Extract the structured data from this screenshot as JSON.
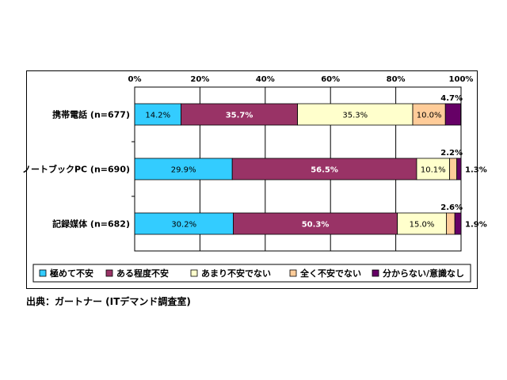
{
  "chart_data": {
    "type": "bar",
    "stacked": true,
    "orientation": "horizontal",
    "percent_axis_ticks": [
      "0%",
      "20%",
      "40%",
      "60%",
      "80%",
      "100%"
    ],
    "categories": [
      "携帯電話 (n=677)",
      "ノートブックPC (n=690)",
      "記録媒体 (n=682)"
    ],
    "series": [
      {
        "name": "極めて不安",
        "values": [
          14.2,
          29.9,
          30.2
        ],
        "labels": [
          "14.2%",
          "29.9%",
          "30.2%"
        ],
        "color": "#33ccff"
      },
      {
        "name": "ある程度不安",
        "values": [
          35.7,
          56.5,
          50.3
        ],
        "labels": [
          "35.7%",
          "56.5%",
          "50.3%"
        ],
        "color": "#993366"
      },
      {
        "name": "あまり不安でない",
        "values": [
          35.3,
          10.1,
          15.0
        ],
        "labels": [
          "35.3%",
          "10.1%",
          "15.0%"
        ],
        "color": "#ffffcc"
      },
      {
        "name": "全く不安でない",
        "values": [
          10.0,
          2.2,
          2.6
        ],
        "labels": [
          "10.0%",
          "2.2%",
          "2.6%"
        ],
        "color": "#ffcc99"
      },
      {
        "name": "分からない/意識なし",
        "values": [
          4.7,
          1.3,
          1.9
        ],
        "labels": [
          "4.7%",
          "1.3%",
          "1.9%"
        ],
        "color": "#660066"
      }
    ],
    "xlim": [
      0,
      100
    ],
    "grid": true,
    "legend_position": "bottom"
  },
  "source": "出典：ガートナー (ITデマンド調査室)"
}
